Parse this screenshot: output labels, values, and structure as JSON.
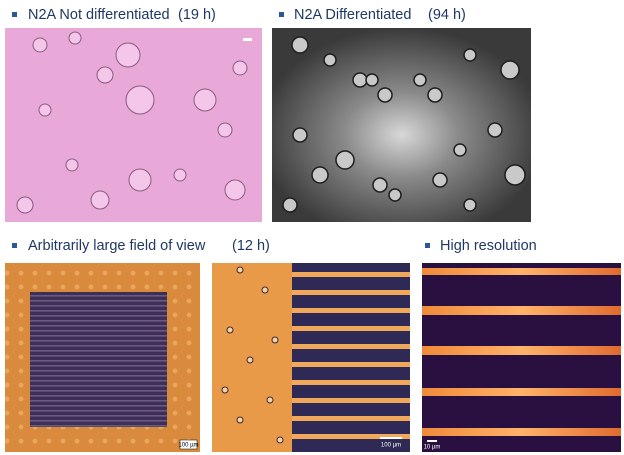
{
  "captions": [
    {
      "text": "N2A Not differentiated",
      "time": "(19 h)"
    },
    {
      "text": "N2A Differentiated",
      "time": "(94 h)"
    },
    {
      "text": "Arbitrarily large field of view",
      "time": "(12 h)"
    },
    {
      "text": "High resolution"
    }
  ],
  "scale_bars": [
    "100 µm",
    "100 µm",
    "10 µm"
  ]
}
